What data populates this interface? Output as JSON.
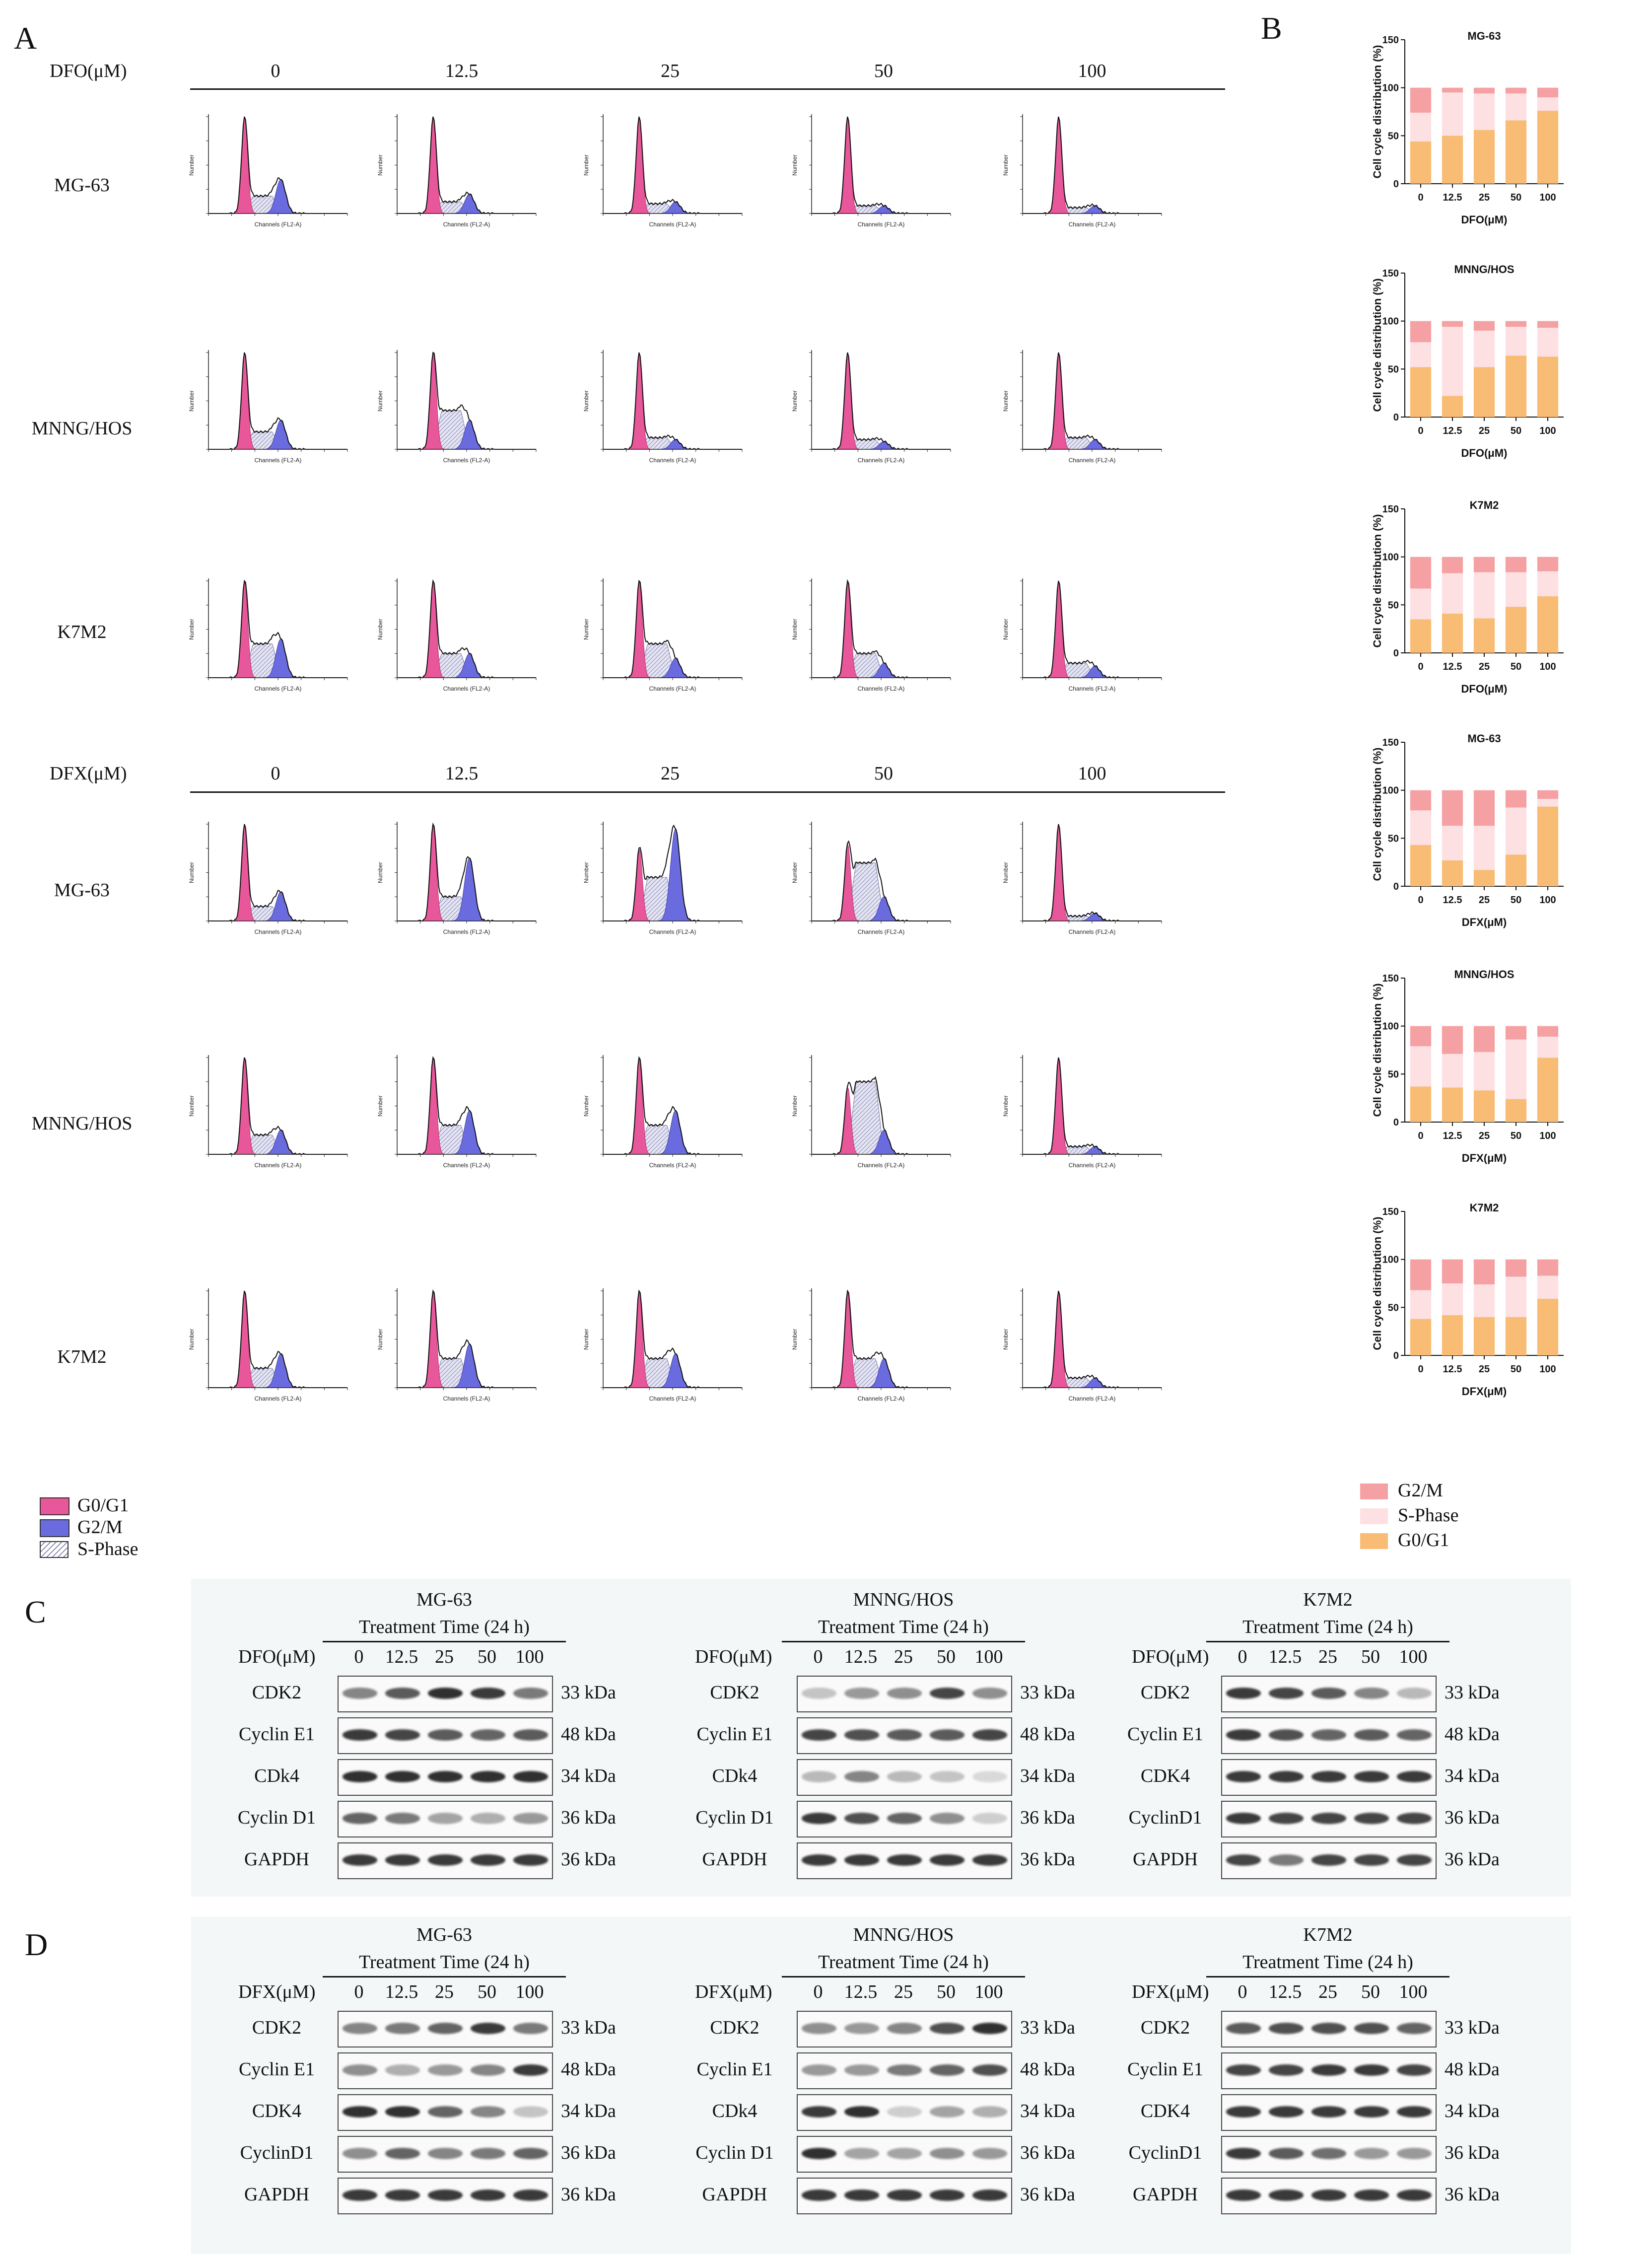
{
  "panels": {
    "a": "A",
    "b": "B",
    "c": "C",
    "d": "D"
  },
  "colors": {
    "g0g1": "#e8579a",
    "g2m": "#6b6be0",
    "s_hatch": "#9a9ac6",
    "bar_g2m": "#f5a0a3",
    "bar_s": "#fde0e2",
    "bar_g0": "#f8bc74"
  },
  "flow": {
    "dfo_label": "DFO(μM)",
    "dfx_label": "DFX(μM)",
    "concentrations": [
      "0",
      "12.5",
      "25",
      "50",
      "100"
    ],
    "dfo_rows": [
      "MG-63",
      "MNNG/HOS",
      "K7M2"
    ],
    "dfx_rows": [
      "MG-63",
      "MNNG/HOS",
      "K7M2"
    ],
    "x_axis_label": "Channels (FL2-A)",
    "y_axis_label": "Number",
    "legend": [
      "G0/G1",
      "G2/M",
      "S-Phase"
    ]
  },
  "chart_data": [
    {
      "type": "bar",
      "stacked": true,
      "title": "MG-63",
      "categories": [
        "0",
        "12.5",
        "25",
        "50",
        "100"
      ],
      "xlabel": "DFO(μM)",
      "ylabel": "Cell cycle distribution (%)",
      "ylim": [
        0,
        150
      ],
      "yticks": [
        "0",
        "50",
        "100",
        "150"
      ],
      "series": [
        {
          "name": "G0/G1",
          "values": [
            44,
            50,
            56,
            66,
            76
          ]
        },
        {
          "name": "S-Phase",
          "values": [
            30,
            45,
            38,
            28,
            14
          ]
        },
        {
          "name": "G2/M",
          "values": [
            26,
            5,
            6,
            6,
            10
          ]
        }
      ]
    },
    {
      "type": "bar",
      "stacked": true,
      "title": "MNNG/HOS",
      "categories": [
        "0",
        "12.5",
        "25",
        "50",
        "100"
      ],
      "xlabel": "DFO(μM)",
      "ylabel": "Cell cycle distribution (%)",
      "ylim": [
        0,
        150
      ],
      "yticks": [
        "0",
        "50",
        "100",
        "150"
      ],
      "series": [
        {
          "name": "G0/G1",
          "values": [
            52,
            22,
            52,
            64,
            63
          ]
        },
        {
          "name": "S-Phase",
          "values": [
            26,
            72,
            38,
            30,
            30
          ]
        },
        {
          "name": "G2/M",
          "values": [
            22,
            6,
            10,
            6,
            7
          ]
        }
      ]
    },
    {
      "type": "bar",
      "stacked": true,
      "title": "K7M2",
      "categories": [
        "0",
        "12.5",
        "25",
        "50",
        "100"
      ],
      "xlabel": "DFO(μM)",
      "ylabel": "Cell cycle distribution (%)",
      "ylim": [
        0,
        150
      ],
      "yticks": [
        "0",
        "50",
        "100",
        "150"
      ],
      "series": [
        {
          "name": "G0/G1",
          "values": [
            35,
            41,
            36,
            48,
            59
          ]
        },
        {
          "name": "S-Phase",
          "values": [
            32,
            42,
            48,
            36,
            26
          ]
        },
        {
          "name": "G2/M",
          "values": [
            33,
            17,
            16,
            16,
            15
          ]
        }
      ]
    },
    {
      "type": "bar",
      "stacked": true,
      "title": "MG-63",
      "categories": [
        "0",
        "12.5",
        "25",
        "50",
        "100"
      ],
      "xlabel": "DFX(μM)",
      "ylabel": "Cell cycle distribution (%)",
      "ylim": [
        0,
        150
      ],
      "yticks": [
        "0",
        "50",
        "100",
        "150"
      ],
      "series": [
        {
          "name": "G0/G1",
          "values": [
            43,
            27,
            17,
            33,
            83
          ]
        },
        {
          "name": "S-Phase",
          "values": [
            36,
            36,
            46,
            49,
            8
          ]
        },
        {
          "name": "G2/M",
          "values": [
            21,
            37,
            37,
            18,
            9
          ]
        }
      ]
    },
    {
      "type": "bar",
      "stacked": true,
      "title": "MNNG/HOS",
      "categories": [
        "0",
        "12.5",
        "25",
        "50",
        "100"
      ],
      "xlabel": "DFX(μM)",
      "ylabel": "Cell cycle distribution (%)",
      "ylim": [
        0,
        150
      ],
      "yticks": [
        "0",
        "50",
        "100",
        "150"
      ],
      "series": [
        {
          "name": "G0/G1",
          "values": [
            37,
            36,
            33,
            24,
            67
          ]
        },
        {
          "name": "S-Phase",
          "values": [
            42,
            35,
            40,
            62,
            22
          ]
        },
        {
          "name": "G2/M",
          "values": [
            21,
            29,
            27,
            14,
            11
          ]
        }
      ]
    },
    {
      "type": "bar",
      "stacked": true,
      "title": "K7M2",
      "categories": [
        "0",
        "12.5",
        "25",
        "50",
        "100"
      ],
      "xlabel": "DFX(μM)",
      "ylabel": "Cell cycle distribution (%)",
      "ylim": [
        0,
        150
      ],
      "yticks": [
        "0",
        "50",
        "100",
        "150"
      ],
      "series": [
        {
          "name": "G0/G1",
          "values": [
            38,
            42,
            40,
            40,
            59
          ]
        },
        {
          "name": "S-Phase",
          "values": [
            30,
            33,
            34,
            42,
            24
          ]
        },
        {
          "name": "G2/M",
          "values": [
            32,
            25,
            26,
            18,
            17
          ]
        }
      ]
    }
  ],
  "bar_legend": [
    "G2/M",
    "S-Phase",
    "G0/G1"
  ],
  "western": {
    "treatment": "Treatment Time (24 h)",
    "doses": [
      "0",
      "12.5",
      "25",
      "50",
      "100"
    ],
    "c": [
      {
        "cell": "MG-63",
        "drug": "DFO(μM)",
        "proteins": [
          "CDK2",
          "Cyclin E1",
          "CDk4",
          "Cyclin D1",
          "GAPDH"
        ],
        "sizes": [
          "33 kDa",
          "48 kDa",
          "34 kDa",
          "36 kDa",
          "36 kDa"
        ]
      },
      {
        "cell": "MNNG/HOS",
        "drug": "DFO(μM)",
        "proteins": [
          "CDK2",
          "Cyclin E1",
          "CDk4",
          "Cyclin D1",
          "GAPDH"
        ],
        "sizes": [
          "33 kDa",
          "48 kDa",
          "34 kDa",
          "36 kDa",
          "36 kDa"
        ]
      },
      {
        "cell": "K7M2",
        "drug": "DFO(μM)",
        "proteins": [
          "CDK2",
          "Cyclin E1",
          "CDK4",
          "CyclinD1",
          "GAPDH"
        ],
        "sizes": [
          "33 kDa",
          "48 kDa",
          "34 kDa",
          "36 kDa",
          "36 kDa"
        ]
      }
    ],
    "d": [
      {
        "cell": "MG-63",
        "drug": "DFX(μM)",
        "proteins": [
          "CDK2",
          "Cyclin E1",
          "CDK4",
          "CyclinD1",
          "GAPDH"
        ],
        "sizes": [
          "33 kDa",
          "48 kDa",
          "34 kDa",
          "36 kDa",
          "36 kDa"
        ]
      },
      {
        "cell": "MNNG/HOS",
        "drug": "DFX(μM)",
        "proteins": [
          "CDK2",
          "Cyclin E1",
          "CDk4",
          "Cyclin D1",
          "GAPDH"
        ],
        "sizes": [
          "33 kDa",
          "48 kDa",
          "34 kDa",
          "36 kDa",
          "36 kDa"
        ]
      },
      {
        "cell": "K7M2",
        "drug": "DFX(μM)",
        "proteins": [
          "CDK2",
          "Cyclin E1",
          "CDK4",
          "CyclinD1",
          "GAPDH"
        ],
        "sizes": [
          "33 kDa",
          "48 kDa",
          "34 kDa",
          "36 kDa",
          "36 kDa"
        ]
      }
    ]
  }
}
